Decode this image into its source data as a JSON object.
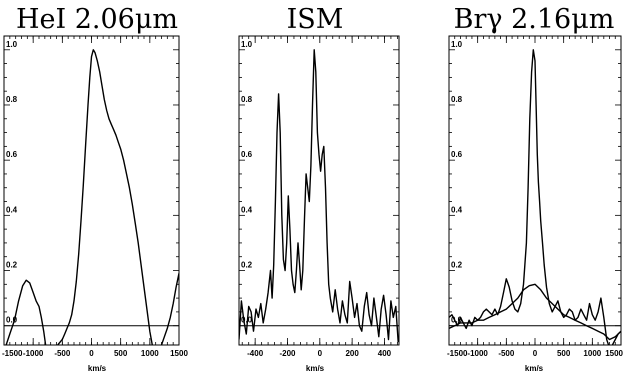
{
  "chart_data": [
    {
      "type": "line",
      "title": "HeI 2.06μm",
      "xlabel": "km/s",
      "ylabel": "",
      "xlim": [
        -1500,
        1500
      ],
      "ylim": [
        -0.07,
        1.05
      ],
      "x_ticks": [
        -1500,
        -1000,
        -500,
        0,
        500,
        1000,
        1500
      ],
      "x_tick_labels": [
        "-1500",
        "-1000",
        "-500",
        "0",
        "500",
        "1000",
        "1500"
      ],
      "y_ticks": [
        0.0,
        0.2,
        0.4,
        0.6,
        0.8,
        1.0
      ],
      "y_tick_labels": [
        "0.0",
        "0.2",
        "0.4",
        "0.6",
        "0.8",
        "1.0"
      ],
      "hline": 0,
      "series": [
        {
          "x": [
            -1480,
            -1400,
            -1320,
            -1250,
            -1180,
            -1120,
            -1060,
            -1000,
            -950,
            -900,
            -860,
            -820,
            -780,
            -740,
            -700,
            -660,
            -620,
            -580,
            -540,
            -500,
            -460,
            -420,
            -380,
            -340,
            -300,
            -260,
            -220,
            -180,
            -140,
            -100,
            -60,
            -30,
            0,
            30,
            60,
            100,
            140,
            180,
            220,
            260,
            300,
            340,
            380,
            420,
            460,
            500,
            550,
            600,
            650,
            700,
            750,
            800,
            850,
            900,
            950,
            1000,
            1050,
            1100,
            1150,
            1200,
            1250,
            1300,
            1350,
            1400,
            1450,
            1500
          ],
          "y": [
            -0.08,
            -0.03,
            0.02,
            0.09,
            0.145,
            0.165,
            0.155,
            0.12,
            0.09,
            0.07,
            0.03,
            -0.02,
            -0.08,
            -0.12,
            -0.12,
            -0.1,
            -0.08,
            -0.07,
            -0.06,
            -0.05,
            -0.03,
            -0.01,
            0.01,
            0.04,
            0.09,
            0.16,
            0.26,
            0.38,
            0.51,
            0.66,
            0.8,
            0.9,
            0.975,
            1.0,
            0.99,
            0.96,
            0.92,
            0.87,
            0.82,
            0.78,
            0.75,
            0.73,
            0.71,
            0.69,
            0.665,
            0.64,
            0.6,
            0.55,
            0.5,
            0.44,
            0.37,
            0.3,
            0.22,
            0.14,
            0.06,
            -0.02,
            -0.08,
            -0.11,
            -0.1,
            -0.07,
            -0.04,
            -0.01,
            0.03,
            0.08,
            0.14,
            0.19
          ]
        }
      ]
    },
    {
      "type": "line",
      "title": "ISM",
      "xlabel": "km/s",
      "ylabel": "",
      "xlim": [
        -500,
        490
      ],
      "ylim": [
        -0.07,
        1.05
      ],
      "x_ticks": [
        -400,
        -200,
        0,
        200,
        400
      ],
      "x_tick_labels": [
        "-400",
        "-200",
        "0",
        "200",
        "400"
      ],
      "y_ticks": [
        0.0,
        0.2,
        0.4,
        0.6,
        0.8,
        1.0
      ],
      "y_tick_labels": [
        "0.0",
        "0.2",
        "0.4",
        "0.6",
        "0.8",
        "1.0"
      ],
      "hline": 0,
      "series": [
        {
          "x": [
            -500,
            -485,
            -470,
            -455,
            -440,
            -425,
            -410,
            -395,
            -380,
            -365,
            -350,
            -335,
            -320,
            -305,
            -295,
            -285,
            -275,
            -265,
            -255,
            -245,
            -235,
            -225,
            -215,
            -205,
            -195,
            -185,
            -175,
            -165,
            -155,
            -145,
            -135,
            -125,
            -115,
            -105,
            -95,
            -85,
            -75,
            -65,
            -55,
            -45,
            -35,
            -25,
            -15,
            -5,
            5,
            15,
            25,
            35,
            45,
            55,
            65,
            80,
            95,
            110,
            125,
            140,
            155,
            170,
            185,
            200,
            215,
            230,
            245,
            260,
            275,
            290,
            305,
            320,
            335,
            350,
            365,
            380,
            395,
            410,
            425,
            440,
            455,
            470,
            485
          ],
          "y": [
            -0.05,
            0.09,
            0.02,
            -0.03,
            0.07,
            0.05,
            -0.02,
            0.06,
            0.03,
            0.08,
            0.01,
            0.06,
            0.12,
            0.2,
            0.1,
            0.22,
            0.45,
            0.7,
            0.84,
            0.7,
            0.4,
            0.24,
            0.2,
            0.3,
            0.47,
            0.35,
            0.2,
            0.15,
            0.12,
            0.2,
            0.3,
            0.22,
            0.13,
            0.2,
            0.39,
            0.55,
            0.5,
            0.45,
            0.58,
            0.8,
            1.0,
            0.92,
            0.7,
            0.62,
            0.56,
            0.62,
            0.65,
            0.5,
            0.3,
            0.15,
            0.1,
            0.05,
            0.13,
            0.06,
            0.01,
            0.09,
            0.04,
            0.01,
            0.16,
            0.1,
            0.03,
            0.08,
            0.0,
            -0.02,
            0.07,
            0.12,
            0.04,
            0.0,
            0.1,
            0.03,
            -0.04,
            0.06,
            0.11,
            0.04,
            -0.05,
            0.09,
            0.03,
            0.07,
            -0.06
          ]
        }
      ]
    },
    {
      "type": "line",
      "title": "Brγ 2.16μm",
      "xlabel": "km/s",
      "ylabel": "",
      "xlim": [
        -1500,
        1500
      ],
      "ylim": [
        -0.07,
        1.05
      ],
      "x_ticks": [
        -1500,
        -1000,
        -500,
        0,
        500,
        1000,
        1500
      ],
      "x_tick_labels": [
        "-1500",
        "-1000",
        "-500",
        "0",
        "500",
        "1000",
        "1500"
      ],
      "y_ticks": [
        0.0,
        0.2,
        0.4,
        0.6,
        0.8,
        1.0
      ],
      "y_tick_labels": [
        "0.0",
        "0.2",
        "0.4",
        "0.6",
        "0.8",
        "1.0"
      ],
      "hline": 0,
      "series": [
        {
          "x": [
            -1500,
            -1450,
            -1400,
            -1350,
            -1300,
            -1250,
            -1200,
            -1150,
            -1100,
            -1050,
            -1000,
            -950,
            -900,
            -850,
            -800,
            -750,
            -700,
            -650,
            -600,
            -550,
            -500,
            -450,
            -400,
            -350,
            -300,
            -250,
            -200,
            -150,
            -120,
            -90,
            -60,
            -30,
            0,
            20,
            40,
            60,
            80,
            100,
            130,
            160,
            200,
            250,
            300,
            350,
            400,
            450,
            500,
            550,
            600,
            650,
            700,
            750,
            800,
            850,
            900,
            950,
            1000,
            1050,
            1100,
            1150,
            1200,
            1250,
            1300,
            1350,
            1400,
            1450,
            1500
          ],
          "y": [
            0.03,
            0.04,
            0.02,
            0.0,
            0.03,
            0.01,
            -0.01,
            0.02,
            0.0,
            0.03,
            0.02,
            0.03,
            0.05,
            0.06,
            0.05,
            0.04,
            0.06,
            0.04,
            0.07,
            0.12,
            0.17,
            0.14,
            0.09,
            0.06,
            0.05,
            0.08,
            0.15,
            0.3,
            0.5,
            0.75,
            0.92,
            1.0,
            0.96,
            0.8,
            0.62,
            0.52,
            0.45,
            0.38,
            0.3,
            0.22,
            0.14,
            0.08,
            0.05,
            0.07,
            0.09,
            0.05,
            0.03,
            0.04,
            0.06,
            0.05,
            0.02,
            0.03,
            0.06,
            0.04,
            0.02,
            0.08,
            0.04,
            0.02,
            0.05,
            0.1,
            0.03,
            -0.05,
            -0.08,
            -0.07,
            -0.05,
            -0.03,
            -0.02
          ]
        },
        {
          "x": [
            -1500,
            -1400,
            -1300,
            -1200,
            -1100,
            -1000,
            -900,
            -800,
            -700,
            -600,
            -500,
            -400,
            -300,
            -200,
            -100,
            0,
            100,
            200,
            300,
            400,
            500,
            600,
            700,
            800,
            900,
            1000,
            1100,
            1200,
            1300,
            1400,
            1500
          ],
          "y": [
            -0.01,
            0.0,
            0.01,
            0.01,
            0.01,
            0.02,
            0.02,
            0.03,
            0.04,
            0.05,
            0.06,
            0.08,
            0.1,
            0.13,
            0.145,
            0.15,
            0.13,
            0.1,
            0.08,
            0.06,
            0.04,
            0.03,
            0.02,
            0.01,
            0.0,
            -0.01,
            -0.02,
            -0.03,
            -0.05,
            -0.04,
            -0.02
          ]
        }
      ]
    }
  ]
}
